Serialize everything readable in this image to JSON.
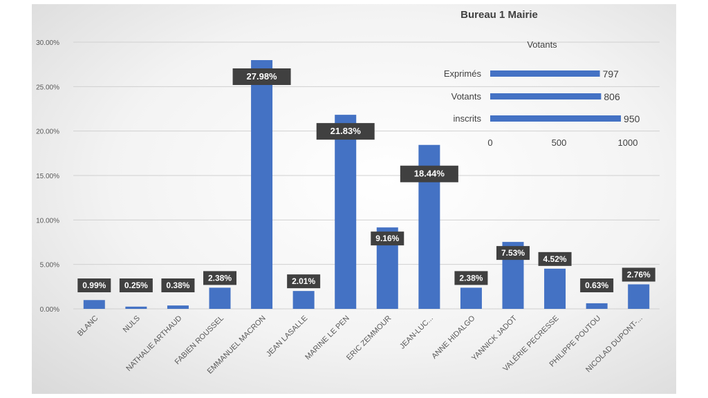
{
  "chart_data": [
    {
      "type": "bar",
      "title": "Bureau 1 Mairie",
      "categories": [
        "BLANC",
        "NULS",
        "NATHALIE ARTHAUD",
        "FABIEN ROUSSEL",
        "EMMANUEL MACRON",
        "JEAN LASALLE",
        "MARINE LE PEN",
        "ERIC ZEMMOUR",
        "JEAN-LUC...",
        "ANNE HIDALGO",
        "YANNICK JADOT",
        "VALÉRIE PECRESSE",
        "PHILIPPE POUTOU",
        "NICOLAD DUPONT-..."
      ],
      "values": [
        0.99,
        0.25,
        0.38,
        2.38,
        27.98,
        2.01,
        21.83,
        9.16,
        18.44,
        2.38,
        7.53,
        4.52,
        0.63,
        2.76
      ],
      "data_labels": [
        "0.99%",
        "0.25%",
        "0.38%",
        "2.38%",
        "27.98%",
        "2.01%",
        "21.83%",
        "9.16%",
        "18.44%",
        "2.38%",
        "7.53%",
        "4.52%",
        "0.63%",
        "2.76%"
      ],
      "ylim": [
        0,
        30
      ],
      "yticks": [
        0,
        5,
        10,
        15,
        20,
        25,
        30
      ],
      "ytick_labels": [
        "0.00%",
        "5.00%",
        "10.00%",
        "15.00%",
        "20.00%",
        "25.00%",
        "30.00%"
      ],
      "grid": true,
      "bar_color": "#4472c4"
    },
    {
      "type": "bar",
      "orientation": "horizontal",
      "title": "Votants",
      "categories": [
        "Exprimés",
        "Votants",
        "inscrits"
      ],
      "values": [
        797,
        806,
        950
      ],
      "data_labels": [
        "797",
        "806",
        "950"
      ],
      "xlim": [
        0,
        1000
      ],
      "xticks": [
        0,
        500,
        1000
      ],
      "xtick_labels": [
        "0",
        "500",
        "1000"
      ],
      "grid": false,
      "bar_color": "#4472c4"
    }
  ],
  "colors": {
    "bar": "#4472c4",
    "label_box": "#404040",
    "label_text": "#ffffff",
    "gridline": "#d0d0d0",
    "axis_text": "#595959"
  }
}
